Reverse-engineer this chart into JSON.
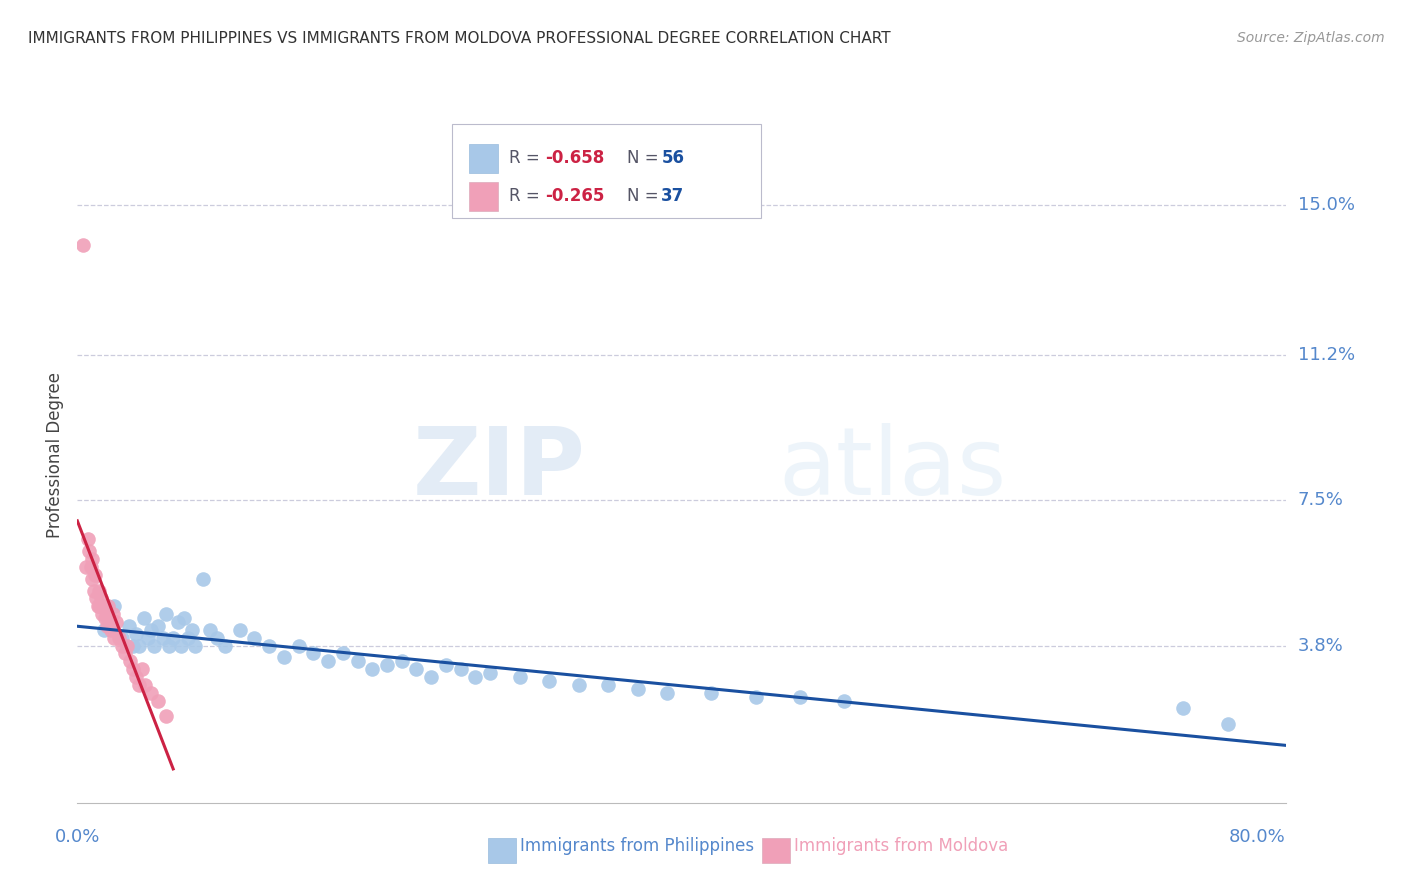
{
  "title": "IMMIGRANTS FROM PHILIPPINES VS IMMIGRANTS FROM MOLDOVA PROFESSIONAL DEGREE CORRELATION CHART",
  "source": "Source: ZipAtlas.com",
  "xlabel_blue": "Immigrants from Philippines",
  "xlabel_pink": "Immigrants from Moldova",
  "ylabel": "Professional Degree",
  "watermark_zip": "ZIP",
  "watermark_atlas": "atlas",
  "xlim": [
    0.0,
    0.82
  ],
  "ylim": [
    -0.002,
    0.175
  ],
  "ytick_vals": [
    0.038,
    0.075,
    0.112,
    0.15
  ],
  "ytick_labels": [
    "3.8%",
    "7.5%",
    "11.2%",
    "15.0%"
  ],
  "blue_R": "-0.658",
  "blue_N": "56",
  "pink_R": "-0.265",
  "pink_N": "37",
  "blue_color": "#a8c8e8",
  "pink_color": "#f0a0b8",
  "blue_line_color": "#1a50a0",
  "pink_line_color": "#cc2244",
  "axis_color": "#5588cc",
  "grid_color": "#ccccdd",
  "title_color": "#333333",
  "blue_points_x": [
    0.018,
    0.025,
    0.03,
    0.035,
    0.038,
    0.04,
    0.042,
    0.045,
    0.048,
    0.05,
    0.052,
    0.055,
    0.058,
    0.06,
    0.062,
    0.065,
    0.068,
    0.07,
    0.072,
    0.075,
    0.078,
    0.08,
    0.085,
    0.09,
    0.095,
    0.1,
    0.11,
    0.12,
    0.13,
    0.14,
    0.15,
    0.16,
    0.17,
    0.18,
    0.19,
    0.2,
    0.21,
    0.22,
    0.23,
    0.24,
    0.25,
    0.26,
    0.27,
    0.28,
    0.3,
    0.32,
    0.34,
    0.36,
    0.38,
    0.4,
    0.43,
    0.46,
    0.49,
    0.52,
    0.75,
    0.78
  ],
  "blue_points_y": [
    0.042,
    0.048,
    0.04,
    0.043,
    0.038,
    0.041,
    0.038,
    0.045,
    0.04,
    0.042,
    0.038,
    0.043,
    0.04,
    0.046,
    0.038,
    0.04,
    0.044,
    0.038,
    0.045,
    0.04,
    0.042,
    0.038,
    0.055,
    0.042,
    0.04,
    0.038,
    0.042,
    0.04,
    0.038,
    0.035,
    0.038,
    0.036,
    0.034,
    0.036,
    0.034,
    0.032,
    0.033,
    0.034,
    0.032,
    0.03,
    0.033,
    0.032,
    0.03,
    0.031,
    0.03,
    0.029,
    0.028,
    0.028,
    0.027,
    0.026,
    0.026,
    0.025,
    0.025,
    0.024,
    0.022,
    0.018
  ],
  "pink_points_x": [
    0.004,
    0.006,
    0.007,
    0.008,
    0.009,
    0.01,
    0.01,
    0.011,
    0.012,
    0.013,
    0.014,
    0.015,
    0.015,
    0.016,
    0.017,
    0.018,
    0.019,
    0.02,
    0.021,
    0.022,
    0.023,
    0.024,
    0.025,
    0.026,
    0.028,
    0.03,
    0.032,
    0.034,
    0.036,
    0.038,
    0.04,
    0.042,
    0.044,
    0.046,
    0.05,
    0.055,
    0.06
  ],
  "pink_points_y": [
    0.14,
    0.058,
    0.065,
    0.062,
    0.058,
    0.06,
    0.055,
    0.052,
    0.056,
    0.05,
    0.048,
    0.052,
    0.048,
    0.05,
    0.046,
    0.048,
    0.045,
    0.043,
    0.048,
    0.044,
    0.042,
    0.046,
    0.04,
    0.044,
    0.04,
    0.038,
    0.036,
    0.038,
    0.034,
    0.032,
    0.03,
    0.028,
    0.032,
    0.028,
    0.026,
    0.024,
    0.02
  ],
  "blue_line_x": [
    0.0,
    0.82
  ],
  "blue_line_y": [
    0.044,
    0.012
  ],
  "pink_line_x": [
    0.0,
    0.08
  ],
  "pink_line_y": [
    0.056,
    0.012
  ]
}
